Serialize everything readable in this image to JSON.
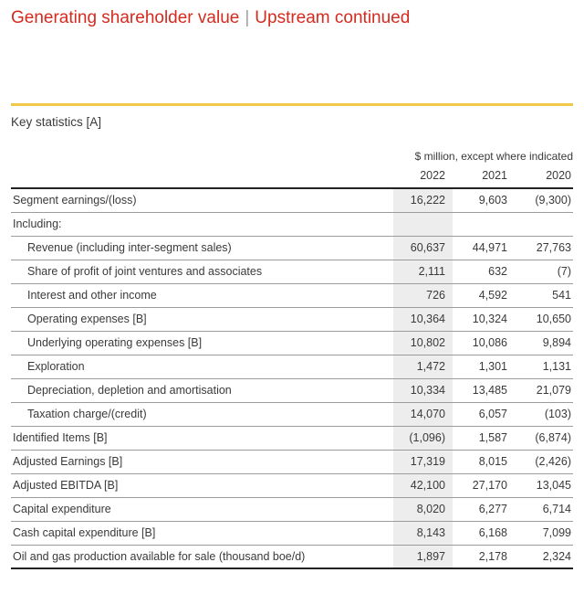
{
  "header": {
    "title_part1": "Generating shareholder value",
    "title_separator": "|",
    "title_part2": "Upstream continued"
  },
  "table": {
    "section_title": "Key statistics [A]",
    "unit_note": "$ million, except where indicated",
    "columns": [
      "2022",
      "2021",
      "2020"
    ],
    "rows": [
      {
        "label": "Segment earnings/(loss)",
        "indent": false,
        "values": [
          "16,222",
          "9,603",
          "(9,300)"
        ]
      },
      {
        "label": "Including:",
        "indent": false,
        "values": [
          "",
          "",
          ""
        ]
      },
      {
        "label": "Revenue (including inter-segment sales)",
        "indent": true,
        "values": [
          "60,637",
          "44,971",
          "27,763"
        ]
      },
      {
        "label": "Share of profit of joint ventures and associates",
        "indent": true,
        "values": [
          "2,111",
          "632",
          "(7)"
        ]
      },
      {
        "label": "Interest and other income",
        "indent": true,
        "values": [
          "726",
          "4,592",
          "541"
        ]
      },
      {
        "label": "Operating expenses [B]",
        "indent": true,
        "values": [
          "10,364",
          "10,324",
          "10,650"
        ]
      },
      {
        "label": "Underlying operating expenses [B]",
        "indent": true,
        "values": [
          "10,802",
          "10,086",
          "9,894"
        ]
      },
      {
        "label": "Exploration",
        "indent": true,
        "values": [
          "1,472",
          "1,301",
          "1,131"
        ]
      },
      {
        "label": "Depreciation, depletion and amortisation",
        "indent": true,
        "values": [
          "10,334",
          "13,485",
          "21,079"
        ]
      },
      {
        "label": "Taxation charge/(credit)",
        "indent": true,
        "values": [
          "14,070",
          "6,057",
          "(103)"
        ]
      },
      {
        "label": "Identified Items [B]",
        "indent": false,
        "values": [
          "(1,096)",
          "1,587",
          "(6,874)"
        ]
      },
      {
        "label": "Adjusted Earnings [B]",
        "indent": false,
        "values": [
          "17,319",
          "8,015",
          "(2,426)"
        ]
      },
      {
        "label": "Adjusted EBITDA [B]",
        "indent": false,
        "values": [
          "42,100",
          "27,170",
          "13,045"
        ]
      },
      {
        "label": "Capital expenditure",
        "indent": false,
        "values": [
          "8,020",
          "6,277",
          "6,714"
        ]
      },
      {
        "label": "Cash capital expenditure [B]",
        "indent": false,
        "values": [
          "8,143",
          "6,168",
          "7,099"
        ]
      },
      {
        "label": "Oil and gas production available for sale (thousand boe/d)",
        "indent": false,
        "values": [
          "1,897",
          "2,178",
          "2,324"
        ]
      }
    ]
  },
  "colors": {
    "accent_red": "#D52B1E",
    "gold_rule": "#F2C84B",
    "column_shade": "#EDEDED",
    "row_border": "#9C9C9C",
    "dark_border": "#222222",
    "text": "#3A3A3A",
    "separator_gray": "#9E9E9E"
  }
}
